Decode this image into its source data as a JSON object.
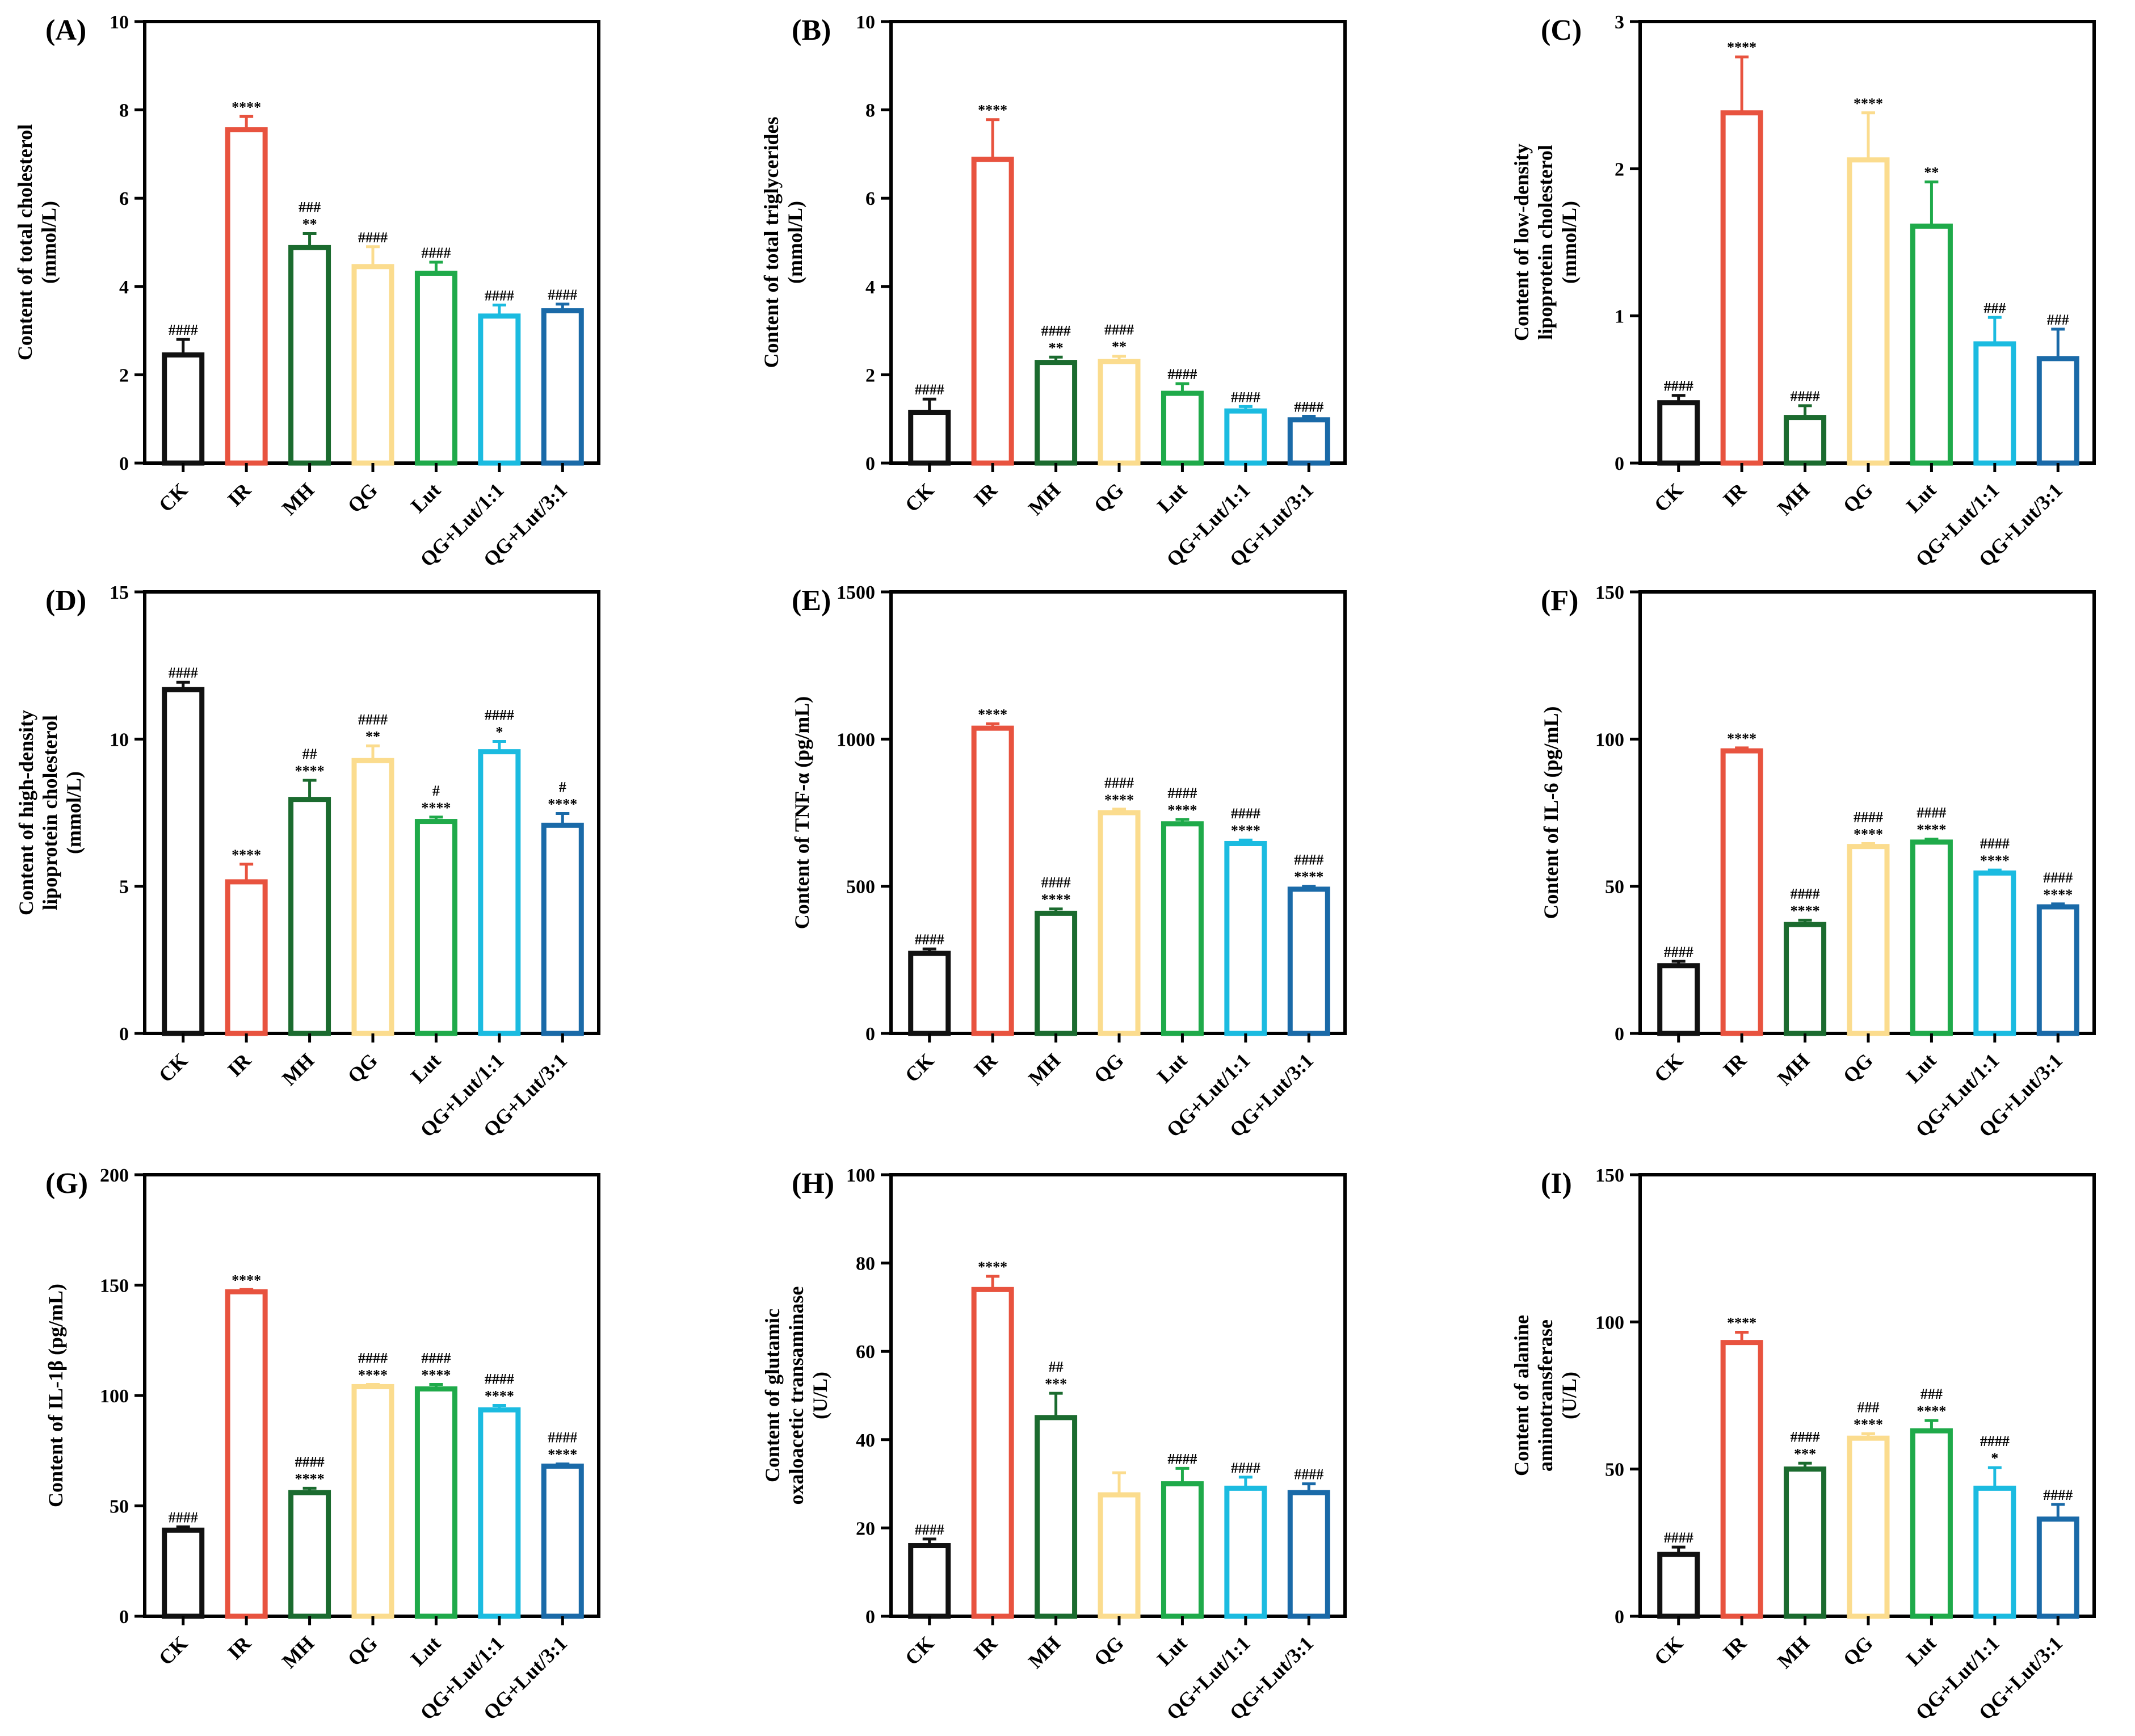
{
  "figure": {
    "categories": [
      "CK",
      "IR",
      "MH",
      "QG",
      "Lut",
      "QG+Lut/1:1",
      "QG+Lut/3:1"
    ],
    "colors": [
      "#111111",
      "#e8533f",
      "#1b6b2f",
      "#fbdc8e",
      "#1faa4a",
      "#1bbbe0",
      "#1a6aa8"
    ]
  },
  "chart_data": [
    {
      "type": "bar",
      "label": "(A)",
      "ylabel": [
        "Content of total cholesterol",
        "(mmol/L)"
      ],
      "ylim": [
        0,
        10
      ],
      "yticks": [
        "0",
        "2",
        "4",
        "6",
        "8",
        "10"
      ],
      "values": [
        2.45,
        7.55,
        4.88,
        4.45,
        4.3,
        3.33,
        3.45
      ],
      "errors": [
        0.35,
        0.3,
        0.32,
        0.45,
        0.25,
        0.25,
        0.15
      ],
      "annotations": [
        [
          "####"
        ],
        [
          "****"
        ],
        [
          "###",
          "**"
        ],
        [
          "####"
        ],
        [
          "####"
        ],
        [
          "####"
        ],
        [
          "####"
        ]
      ]
    },
    {
      "type": "bar",
      "label": "(B)",
      "ylabel": [
        "Content of total triglycerides",
        "(mmol/L)"
      ],
      "ylim": [
        0,
        10
      ],
      "yticks": [
        "0",
        "2",
        "4",
        "6",
        "8",
        "10"
      ],
      "values": [
        1.15,
        6.88,
        2.28,
        2.3,
        1.58,
        1.18,
        0.98
      ],
      "errors": [
        0.3,
        0.9,
        0.12,
        0.12,
        0.22,
        0.1,
        0.08
      ],
      "annotations": [
        [
          "####"
        ],
        [
          "****"
        ],
        [
          "####",
          "**"
        ],
        [
          "####",
          "**"
        ],
        [
          "####"
        ],
        [
          "####"
        ],
        [
          "####"
        ]
      ]
    },
    {
      "type": "bar",
      "label": "(C)",
      "ylabel": [
        "Content of low-density",
        "lipoprotein cholesterol",
        "(mmol/L)"
      ],
      "ylim": [
        0,
        3
      ],
      "yticks": [
        "0",
        "1",
        "2",
        "3"
      ],
      "values": [
        0.41,
        2.38,
        0.31,
        2.06,
        1.61,
        0.81,
        0.71
      ],
      "errors": [
        0.05,
        0.38,
        0.08,
        0.32,
        0.3,
        0.18,
        0.2
      ],
      "annotations": [
        [
          "####"
        ],
        [
          "****"
        ],
        [
          "####"
        ],
        [
          "****"
        ],
        [
          "**"
        ],
        [
          "###"
        ],
        [
          "###"
        ]
      ]
    },
    {
      "type": "bar",
      "label": "(D)",
      "ylabel": [
        "Content of high-density",
        "lipoprotein cholesterol",
        "(mmol/L)"
      ],
      "ylim": [
        0,
        15
      ],
      "yticks": [
        "0",
        "5",
        "10",
        "15"
      ],
      "values": [
        11.68,
        5.15,
        7.95,
        9.27,
        7.2,
        9.57,
        7.07
      ],
      "errors": [
        0.25,
        0.6,
        0.65,
        0.5,
        0.15,
        0.35,
        0.4
      ],
      "annotations": [
        [
          "####"
        ],
        [
          "****"
        ],
        [
          "##",
          "****"
        ],
        [
          "####",
          "**"
        ],
        [
          "#",
          "****"
        ],
        [
          "####",
          "*"
        ],
        [
          "#",
          "****"
        ]
      ]
    },
    {
      "type": "bar",
      "label": "(E)",
      "ylabel": [
        "Content of TNF-α (pg/mL)"
      ],
      "ylim": [
        0,
        1500
      ],
      "yticks": [
        "0",
        "500",
        "1000",
        "1500"
      ],
      "values": [
        272,
        1037,
        408,
        750,
        712,
        645,
        490
      ],
      "errors": [
        15,
        15,
        15,
        12,
        15,
        12,
        10
      ],
      "annotations": [
        [
          "####"
        ],
        [
          "****"
        ],
        [
          "####",
          "****"
        ],
        [
          "####",
          "****"
        ],
        [
          "####",
          "****"
        ],
        [
          "####",
          "****"
        ],
        [
          "####",
          "****"
        ]
      ]
    },
    {
      "type": "bar",
      "label": "(F)",
      "ylabel": [
        "Content of IL-6 (pg/mL)"
      ],
      "ylim": [
        0,
        150
      ],
      "yticks": [
        "0",
        "50",
        "100",
        "150"
      ],
      "values": [
        23,
        96,
        37,
        63.5,
        65,
        54.5,
        43
      ],
      "errors": [
        1.5,
        1,
        1.5,
        1,
        1,
        1,
        1
      ],
      "annotations": [
        [
          "####"
        ],
        [
          "****"
        ],
        [
          "####",
          "****"
        ],
        [
          "####",
          "****"
        ],
        [
          "####",
          "****"
        ],
        [
          "####",
          "****"
        ],
        [
          "####",
          "****"
        ]
      ]
    },
    {
      "type": "bar",
      "label": "(G)",
      "ylabel": [
        "Content of IL-1β (pg/mL)"
      ],
      "ylim": [
        0,
        200
      ],
      "yticks": [
        "0",
        "50",
        "100",
        "150",
        "200"
      ],
      "values": [
        39,
        147,
        56,
        104,
        103,
        93.5,
        68
      ],
      "errors": [
        1.5,
        1,
        2,
        1,
        2,
        2,
        1
      ],
      "annotations": [
        [
          "####"
        ],
        [
          "****"
        ],
        [
          "####",
          "****"
        ],
        [
          "####",
          "****"
        ],
        [
          "####",
          "****"
        ],
        [
          "####",
          "****"
        ],
        [
          "####",
          "****"
        ]
      ]
    },
    {
      "type": "bar",
      "label": "(H)",
      "ylabel": [
        "Content of glutamic",
        "oxaloacetic transaminase",
        "(U/L)"
      ],
      "ylim": [
        0,
        100
      ],
      "yticks": [
        "0",
        "20",
        "40",
        "60",
        "80",
        "100"
      ],
      "values": [
        16,
        74,
        45,
        27.5,
        30,
        29,
        28
      ],
      "errors": [
        1.5,
        3,
        5.5,
        5,
        3.5,
        2.5,
        2
      ],
      "annotations": [
        [
          "####"
        ],
        [
          "****"
        ],
        [
          "##",
          "***"
        ],
        [],
        [
          "####"
        ],
        [
          "####"
        ],
        [
          "####"
        ]
      ]
    },
    {
      "type": "bar",
      "label": "(I)",
      "ylabel": [
        "Content of alanine",
        "aminotransferase",
        "(U/L)"
      ],
      "ylim": [
        0,
        150
      ],
      "yticks": [
        "0",
        "50",
        "100",
        "150"
      ],
      "values": [
        21,
        93,
        50,
        60.5,
        63,
        43.5,
        33
      ],
      "errors": [
        2.5,
        3.5,
        2,
        1.5,
        3.5,
        7,
        5
      ],
      "annotations": [
        [
          "####"
        ],
        [
          "****"
        ],
        [
          "####",
          "***"
        ],
        [
          "###",
          "****"
        ],
        [
          "###",
          "****"
        ],
        [
          "####",
          "*"
        ],
        [
          "####"
        ]
      ]
    }
  ]
}
